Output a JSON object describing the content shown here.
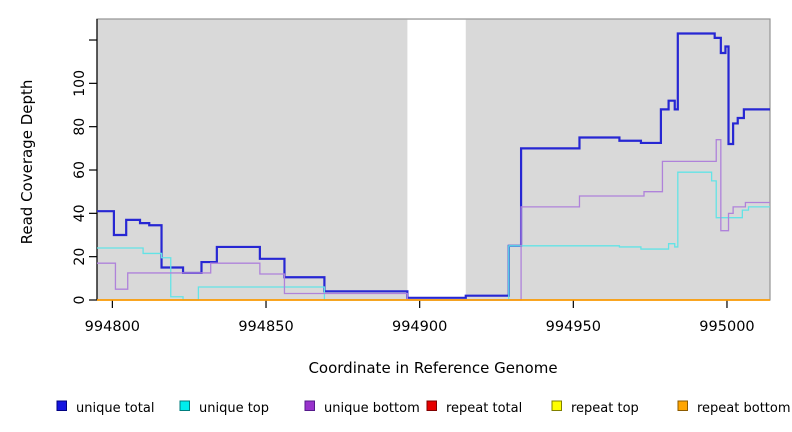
{
  "chart_data": {
    "type": "line",
    "subtype": "step",
    "title": "",
    "xlabel": "Coordinate in Reference Genome",
    "ylabel": "Read Coverage Depth",
    "xlim": [
      994795,
      995014
    ],
    "ylim": [
      0,
      130
    ],
    "x_ticks": [
      994800,
      994850,
      994900,
      994950,
      995000
    ],
    "y_ticks_labeled": [
      0,
      20,
      40,
      60,
      80,
      100
    ],
    "y_ticks_unlabeled": [
      120
    ],
    "grid": false,
    "legend_position": "bottom",
    "panel_background": "#d9d9d9",
    "panel_border_color": "#949494",
    "axis_color": "#000000",
    "masked_region": {
      "from": 994896,
      "to": 994915,
      "color": "#ffffff"
    },
    "series": [
      {
        "name": "unique total",
        "line_color": "#2727d3",
        "legend_fill": "#1414e0",
        "legend_border": "#000080",
        "line_width": 2.2,
        "points": [
          [
            994795,
            41
          ],
          [
            994800.5,
            30
          ],
          [
            994804.5,
            37
          ],
          [
            994809,
            35.5
          ],
          [
            994812,
            34.5
          ],
          [
            994816,
            15
          ],
          [
            994823,
            12.5
          ],
          [
            994829,
            17.5
          ],
          [
            994834,
            24.5
          ],
          [
            994848,
            19
          ],
          [
            994856,
            10.5
          ],
          [
            994869,
            4
          ],
          [
            994896,
            1
          ],
          [
            994915,
            2
          ],
          [
            994929,
            25
          ],
          [
            994933,
            70
          ],
          [
            994952,
            75
          ],
          [
            994965,
            73.5
          ],
          [
            994972,
            72.5
          ],
          [
            994978.5,
            88
          ],
          [
            994981,
            92
          ],
          [
            994983,
            88
          ],
          [
            994984,
            123
          ],
          [
            994996,
            121
          ],
          [
            994998,
            114
          ],
          [
            994999.5,
            117
          ],
          [
            995000.5,
            72
          ],
          [
            995002,
            81.5
          ],
          [
            995003.5,
            84
          ],
          [
            995005.5,
            88
          ]
        ]
      },
      {
        "name": "unique top",
        "line_color": "#63e3e6",
        "legend_fill": "#00eded",
        "legend_border": "#007d7d",
        "line_width": 1.3,
        "points": [
          [
            994795,
            24
          ],
          [
            994810,
            21.5
          ],
          [
            994816,
            19.5
          ],
          [
            994819,
            1.5
          ],
          [
            994823,
            0
          ],
          [
            994828,
            6
          ],
          [
            994869,
            0
          ],
          [
            994929,
            25
          ],
          [
            994965,
            24.5
          ],
          [
            994972,
            23.5
          ],
          [
            994981,
            26
          ],
          [
            994983,
            24.5
          ],
          [
            994984,
            59
          ],
          [
            994995,
            55
          ],
          [
            994996.5,
            38
          ],
          [
            995005,
            41.5
          ],
          [
            995007,
            43
          ]
        ]
      },
      {
        "name": "unique bottom",
        "line_color": "#af82da",
        "legend_fill": "#9932cc",
        "legend_border": "#551a8b",
        "line_width": 1.3,
        "points": [
          [
            994795,
            17
          ],
          [
            994801,
            5
          ],
          [
            994805,
            12.5
          ],
          [
            994832,
            17
          ],
          [
            994848,
            12
          ],
          [
            994856,
            3
          ],
          [
            994896,
            0
          ],
          [
            994933,
            43
          ],
          [
            994952,
            48
          ],
          [
            994973,
            50
          ],
          [
            994979,
            64
          ],
          [
            994996.5,
            74
          ],
          [
            994998,
            32
          ],
          [
            995000.5,
            40
          ],
          [
            995002,
            43
          ],
          [
            995006,
            45
          ]
        ]
      },
      {
        "name": "repeat total",
        "line_color": "#d02020",
        "legend_fill": "#e60000",
        "legend_border": "#7f0000",
        "line_width": 1.3,
        "points": [
          [
            994795,
            0
          ]
        ]
      },
      {
        "name": "repeat top",
        "line_color": "#ffff00",
        "legend_fill": "#ffff00",
        "legend_border": "#808000",
        "line_width": 1.3,
        "points": [
          [
            994795,
            0
          ]
        ]
      },
      {
        "name": "repeat bottom",
        "line_color": "#ff9a00",
        "legend_fill": "#ffa500",
        "legend_border": "#8b5a00",
        "line_width": 1.6,
        "points": [
          [
            994795,
            0
          ]
        ]
      }
    ]
  }
}
